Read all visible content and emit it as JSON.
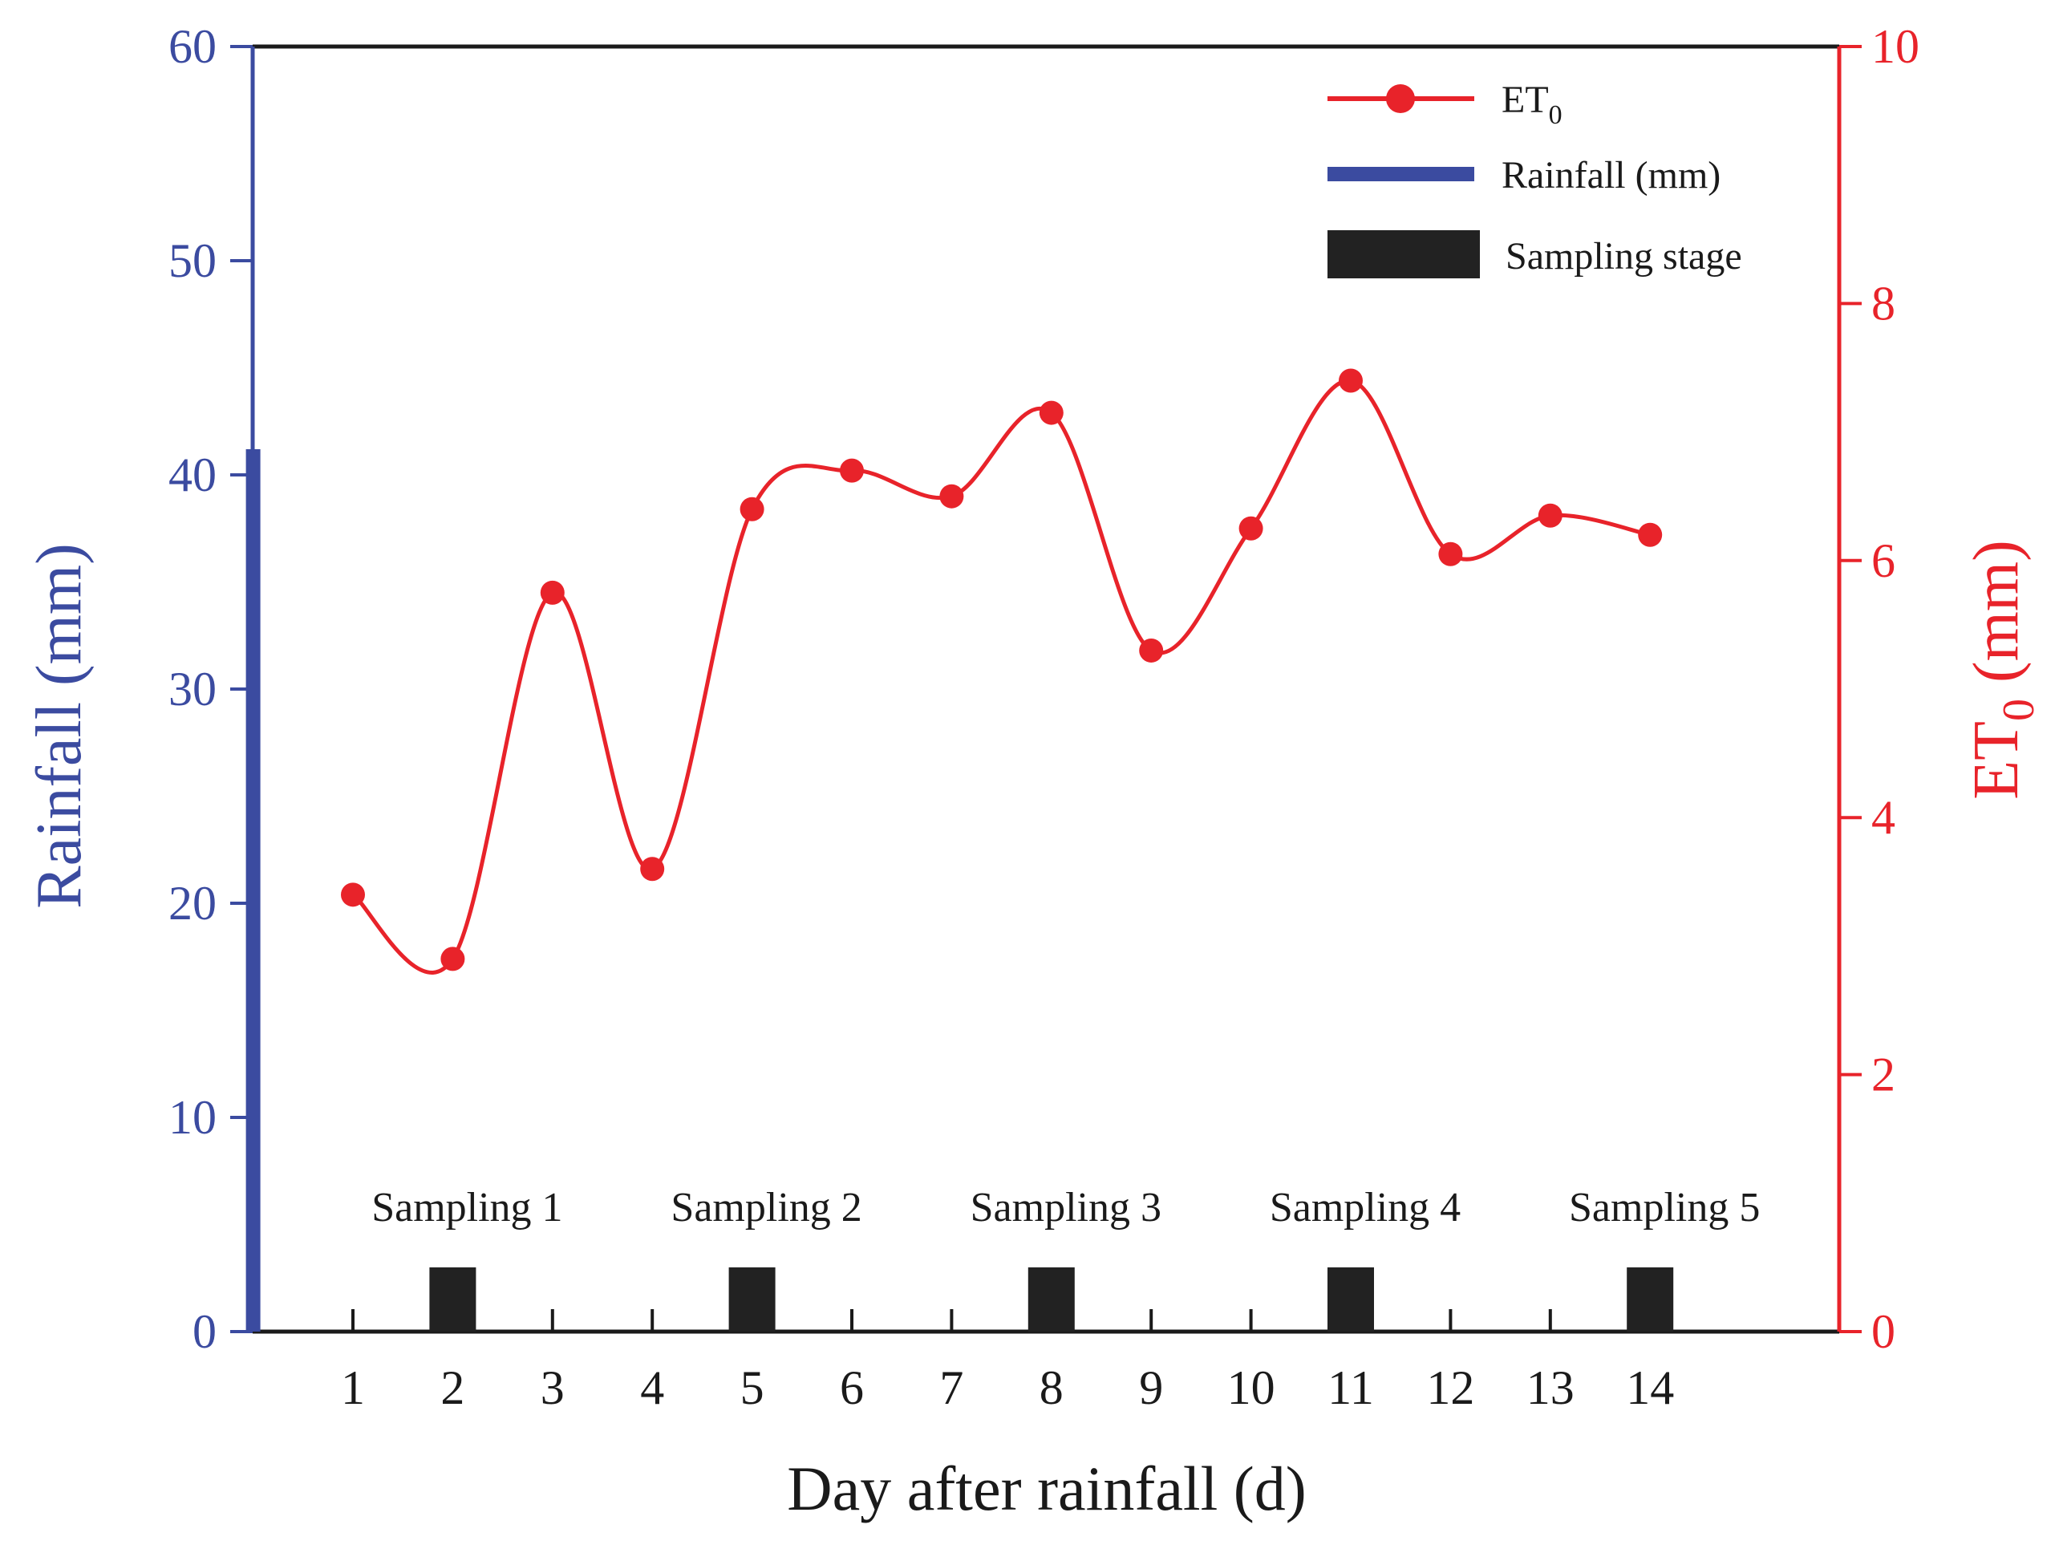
{
  "chart_data": {
    "type": "bar+line",
    "x_label": "Day after rainfall (d)",
    "x_categories": [
      "1",
      "2",
      "3",
      "4",
      "5",
      "6",
      "7",
      "8",
      "9",
      "10",
      "11",
      "12",
      "13",
      "14"
    ],
    "rainfall": {
      "name": "Rainfall (mm)",
      "axis": "left",
      "ylabel": "Rainfall (mm)",
      "ylim": [
        0,
        60
      ],
      "yticks": [
        "0",
        "10",
        "20",
        "30",
        "40",
        "50",
        "60"
      ],
      "day": 0,
      "value": 41.2,
      "color": "#3B4BA0"
    },
    "et0": {
      "name": "ET",
      "name_sub": "0",
      "axis": "right",
      "ylabel": "ET",
      "ylabel_sub": "0",
      "ylabel_suffix": " (mm)",
      "ylim": [
        0,
        10
      ],
      "yticks": [
        "0",
        "2",
        "4",
        "6",
        "8",
        "10"
      ],
      "days": [
        1,
        2,
        3,
        4,
        5,
        6,
        7,
        8,
        9,
        10,
        11,
        12,
        13,
        14
      ],
      "values": [
        3.4,
        2.9,
        5.75,
        3.6,
        6.4,
        6.7,
        6.5,
        7.15,
        5.3,
        6.25,
        7.4,
        6.05,
        6.35,
        6.2
      ],
      "color": "#E8232A"
    },
    "sampling": {
      "name": "Sampling stage",
      "days": [
        2,
        5,
        8,
        11,
        14
      ],
      "labels": [
        "Sampling 1",
        "Sampling 2",
        "Sampling 3",
        "Sampling 4",
        "Sampling 5"
      ],
      "bar_value_mm": 3,
      "color": "#222222"
    },
    "legend": {
      "position": "top-right",
      "entries": [
        "ET0",
        "Rainfall (mm)",
        "Sampling stage"
      ]
    }
  }
}
